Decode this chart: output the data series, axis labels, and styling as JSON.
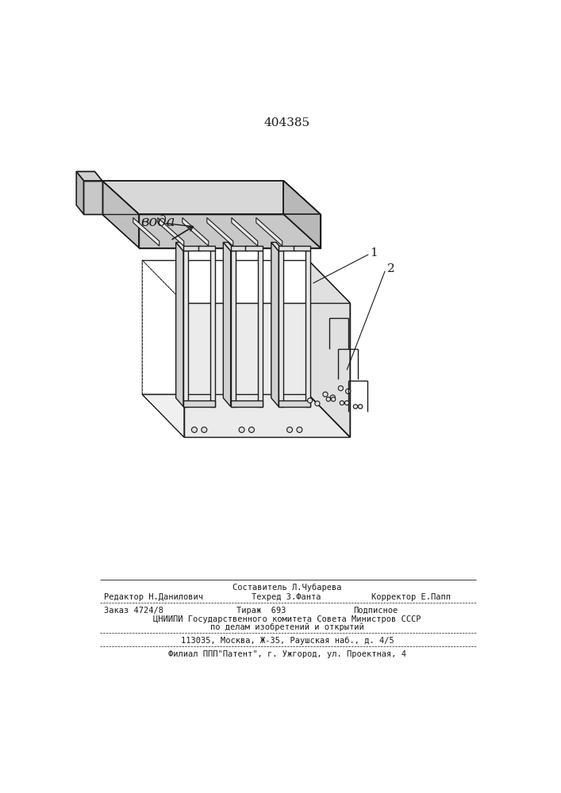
{
  "patent_number": "404385",
  "label_voda": "вода",
  "label_1": "1",
  "label_2": "2",
  "footer_line1_center": "Составитель Л.Чубарева",
  "footer_line2_left": "Редактор Н.Данилович",
  "footer_line2_center": "Техред З.Фанта",
  "footer_line2_right": "Корректор Е.Папп",
  "footer_line3_left": "Заказ 4724/8",
  "footer_line3_center": "Тираж  693",
  "footer_line3_right": "Подписное",
  "footer_line4": "ЦНИИПИ Государственного комитета Совета Министров СССР",
  "footer_line5": "по делам изобретений и открытий",
  "footer_line6": "113035, Москва, Ж-35, Раушская наб., д. 4/5",
  "footer_line7": "Филиал ППП\"Патент\", г. Ужгород, ул. Проектная, 4",
  "bg_color": "#ffffff",
  "line_color": "#1a1a1a"
}
